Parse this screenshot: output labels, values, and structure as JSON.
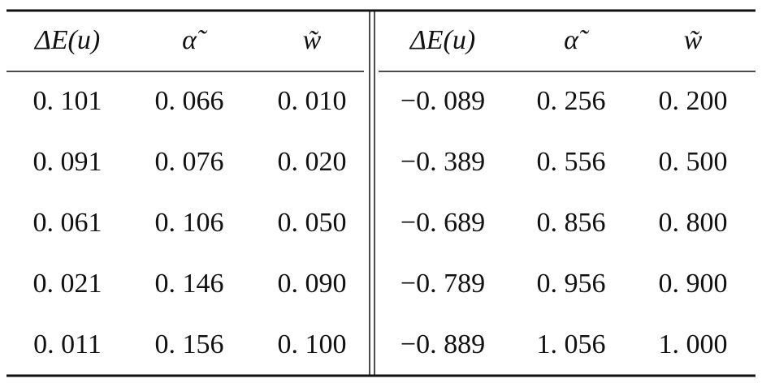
{
  "table": {
    "header": [
      "ΔE(u)",
      "α̃",
      "w̃",
      "ΔE(u)",
      "α̃",
      "w̃"
    ],
    "rows": [
      [
        "0. 101",
        "0. 066",
        "0. 010",
        "−0. 089",
        "0. 256",
        "0. 200"
      ],
      [
        "0. 091",
        "0. 076",
        "0. 020",
        "−0. 389",
        "0. 556",
        "0. 500"
      ],
      [
        "0. 061",
        "0. 106",
        "0. 050",
        "−0. 689",
        "0. 856",
        "0. 800"
      ],
      [
        "0. 021",
        "0. 146",
        "0. 090",
        "−0. 789",
        "0. 956",
        "0. 900"
      ],
      [
        "0. 011",
        "0. 156",
        "0. 100",
        "−0. 889",
        "1. 056",
        "1. 000"
      ]
    ]
  }
}
